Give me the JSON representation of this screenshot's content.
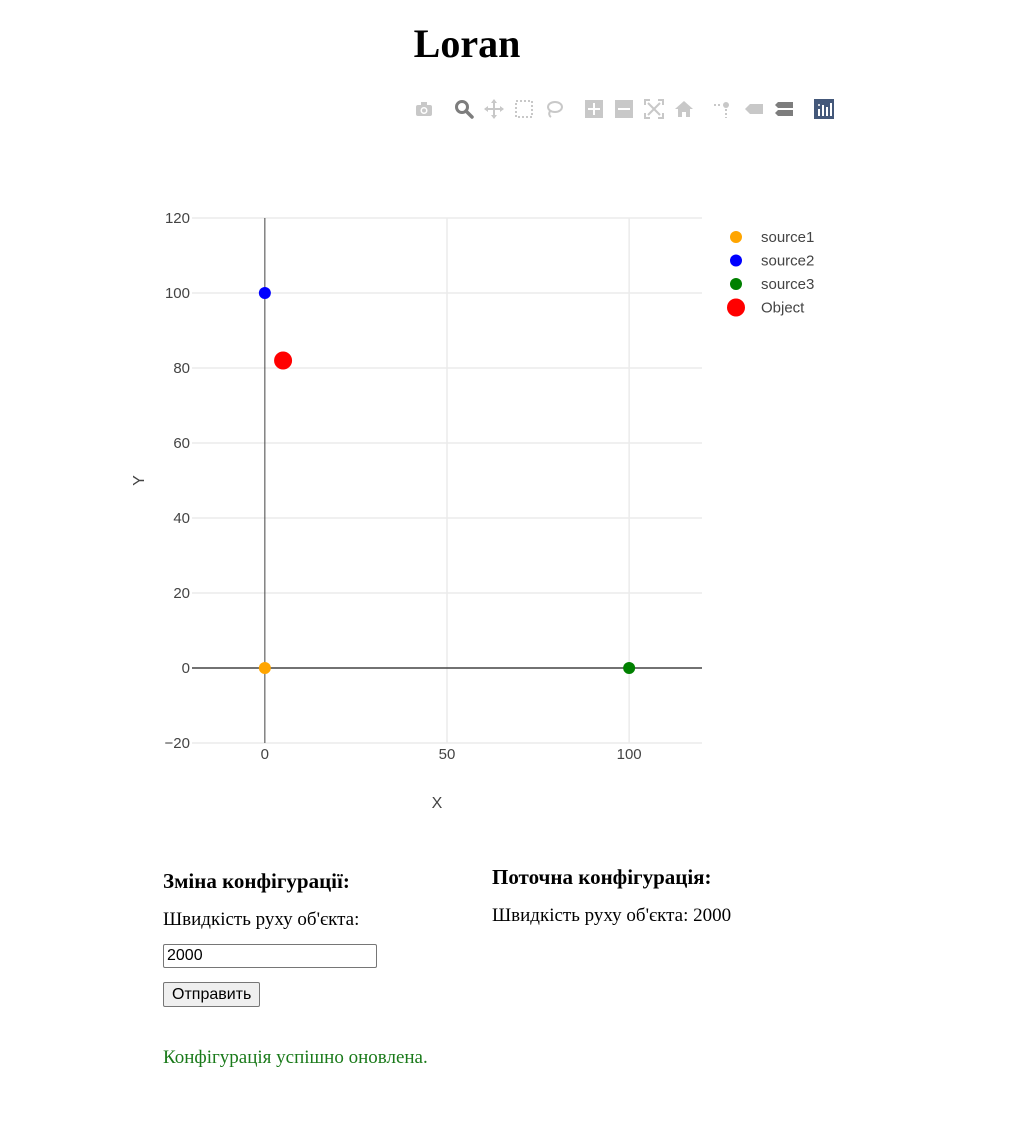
{
  "page": {
    "title": "Loran"
  },
  "modebar": {
    "buttons": [
      {
        "icon": "camera-icon",
        "color": "#c8c8c8"
      },
      {
        "icon": "zoom-icon",
        "color": "#7d7d7d"
      },
      {
        "icon": "pan-icon",
        "color": "#c8c8c8"
      },
      {
        "icon": "box-select-icon",
        "color": "#c8c8c8"
      },
      {
        "icon": "lasso-select-icon",
        "color": "#c8c8c8"
      },
      {
        "icon": "zoom-in-icon",
        "color": "#c8c8c8"
      },
      {
        "icon": "zoom-out-icon",
        "color": "#c8c8c8"
      },
      {
        "icon": "autoscale-icon",
        "color": "#c8c8c8"
      },
      {
        "icon": "reset-axes-icon",
        "color": "#c8c8c8"
      },
      {
        "icon": "spikelines-icon",
        "color": "#c8c8c8"
      },
      {
        "icon": "hover-closest-icon",
        "color": "#c8c8c8"
      },
      {
        "icon": "hover-compare-icon",
        "color": "#7d7d7d"
      },
      {
        "icon": "plotly-logo-icon",
        "color": "#44587a"
      }
    ]
  },
  "chart_data": {
    "type": "scatter",
    "xlabel": "X",
    "ylabel": "Y",
    "xlim": [
      -20,
      120
    ],
    "ylim": [
      -20,
      120
    ],
    "x_ticks": [
      0,
      50,
      100
    ],
    "y_ticks": [
      -20,
      0,
      20,
      40,
      60,
      80,
      100,
      120
    ],
    "x_tick_labels": [
      "0",
      "50",
      "100"
    ],
    "y_tick_labels": [
      "−20",
      "0",
      "20",
      "40",
      "60",
      "80",
      "100",
      "120"
    ],
    "grid": true,
    "legend_position": "top-right",
    "series": [
      {
        "name": "source1",
        "x": [
          0
        ],
        "y": [
          0
        ],
        "color": "#ffa500",
        "marker": "small"
      },
      {
        "name": "source2",
        "x": [
          0
        ],
        "y": [
          100
        ],
        "color": "#0000ff",
        "marker": "small"
      },
      {
        "name": "source3",
        "x": [
          100
        ],
        "y": [
          0
        ],
        "color": "#008000",
        "marker": "small"
      },
      {
        "name": "Object",
        "x": [
          5
        ],
        "y": [
          82
        ],
        "color": "#ff0000",
        "marker": "large"
      }
    ]
  },
  "config_form": {
    "heading": "Зміна конфігурації:",
    "speed_label": "Швидкість руху об'єкта:",
    "speed_value": "2000",
    "submit_label": "Отправить"
  },
  "current_config": {
    "heading": "Поточна конфігурація:",
    "speed_text": "Швидкість руху об'єкта: 2000"
  },
  "status": {
    "message": "Конфігурація успішно оновлена.",
    "color": "#1a7a1a"
  }
}
